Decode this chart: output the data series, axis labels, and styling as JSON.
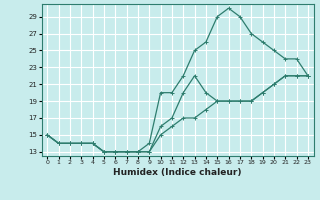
{
  "xlabel": "Humidex (Indice chaleur)",
  "bg_color": "#c8ecec",
  "grid_color": "#ffffff",
  "line_color": "#2e7d6e",
  "xlim": [
    -0.5,
    23.5
  ],
  "ylim": [
    12.5,
    30.5
  ],
  "xticks": [
    0,
    1,
    2,
    3,
    4,
    5,
    6,
    7,
    8,
    9,
    10,
    11,
    12,
    13,
    14,
    15,
    16,
    17,
    18,
    19,
    20,
    21,
    22,
    23
  ],
  "yticks": [
    13,
    15,
    17,
    19,
    21,
    23,
    25,
    27,
    29
  ],
  "line1_x": [
    0,
    1,
    2,
    3,
    4,
    5,
    6,
    7,
    8,
    9,
    10,
    11,
    12,
    13,
    14,
    15,
    16,
    17,
    18,
    19,
    20,
    21,
    22,
    23
  ],
  "line1_y": [
    15,
    14,
    14,
    14,
    14,
    13,
    13,
    13,
    13,
    13,
    15,
    16,
    17,
    17,
    18,
    19,
    19,
    19,
    19,
    20,
    21,
    22,
    22,
    22
  ],
  "line2_x": [
    0,
    1,
    2,
    3,
    4,
    5,
    6,
    7,
    8,
    9,
    10,
    11,
    12,
    13,
    14,
    15,
    16,
    17,
    18,
    19,
    20,
    21,
    22,
    23
  ],
  "line2_y": [
    15,
    14,
    14,
    14,
    14,
    13,
    13,
    13,
    13,
    13,
    16,
    17,
    20,
    22,
    20,
    19,
    19,
    19,
    19,
    20,
    21,
    22,
    22,
    22
  ],
  "line3_x": [
    0,
    1,
    2,
    3,
    4,
    5,
    6,
    7,
    8,
    9,
    10,
    11,
    12,
    13,
    14,
    15,
    16,
    17,
    18,
    19,
    20,
    21,
    22,
    23
  ],
  "line3_y": [
    15,
    14,
    14,
    14,
    14,
    13,
    13,
    13,
    13,
    14,
    20,
    20,
    22,
    25,
    26,
    29,
    30,
    29,
    27,
    26,
    25,
    24,
    24,
    22
  ]
}
